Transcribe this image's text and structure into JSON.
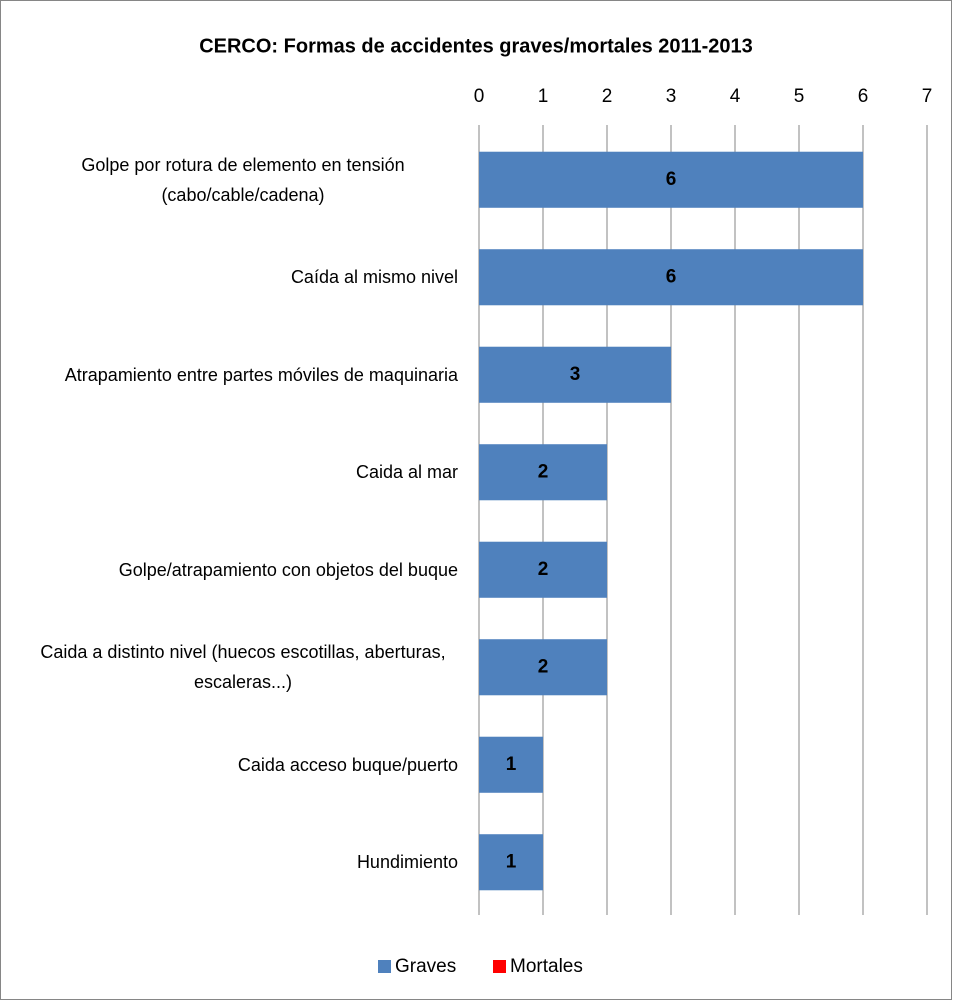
{
  "chart_data": {
    "type": "bar",
    "orientation": "horizontal",
    "stacked": true,
    "title": "CERCO: Formas de accidentes graves/mortales 2011-2013",
    "categories": [
      "Golpe por rotura de elemento en tensión (cabo/cable/cadena)",
      "Caída al mismo nivel",
      "Atrapamiento entre partes móviles de maquinaria",
      "Caida al mar",
      "Golpe/atrapamiento con objetos del buque",
      "Caida a distinto nivel (huecos escotillas, aberturas, escaleras...)",
      "Caida acceso buque/puerto",
      "Hundimiento"
    ],
    "series": [
      {
        "name": "Graves",
        "color": "#4f81bd",
        "values": [
          6,
          6,
          3,
          2,
          2,
          2,
          1,
          1
        ]
      },
      {
        "name": "Mortales",
        "color": "#ff0000",
        "values": [
          0,
          0,
          0,
          0,
          0,
          0,
          0,
          0
        ]
      }
    ],
    "xlim": [
      0,
      7
    ],
    "xticks": [
      0,
      1,
      2,
      3,
      4,
      5,
      6,
      7
    ],
    "grid": true,
    "legend": "bottom"
  }
}
